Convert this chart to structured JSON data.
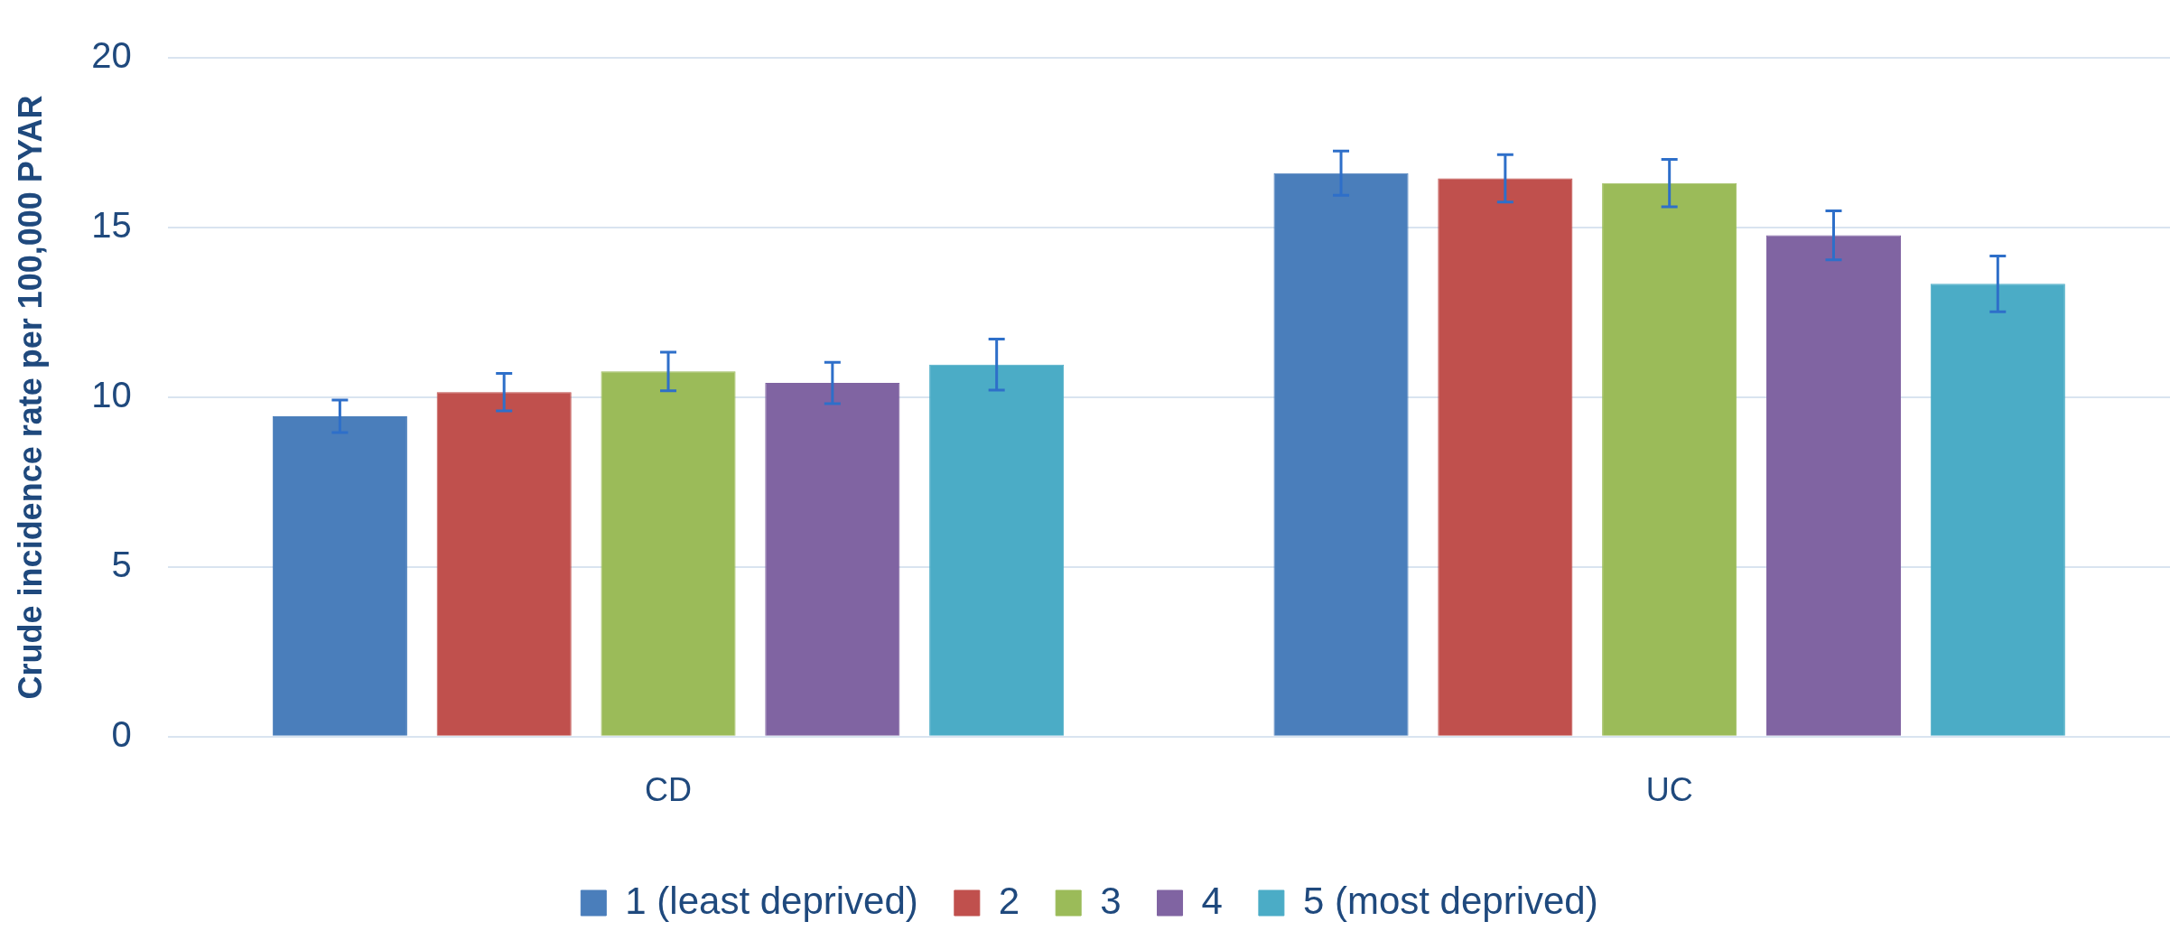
{
  "chart_data": {
    "type": "bar",
    "ylabel": "Crude incidence rate per 100,000 PYAR",
    "categories": [
      "CD",
      "UC"
    ],
    "series": [
      {
        "name": "1 (least deprived)",
        "color": "#4a7ebb",
        "values": [
          9.44,
          16.6
        ],
        "errors": [
          0.48,
          0.65
        ]
      },
      {
        "name": "2",
        "color": "#c0504d",
        "values": [
          10.15,
          16.45
        ],
        "errors": [
          0.55,
          0.7
        ]
      },
      {
        "name": "3",
        "color": "#9bbb59",
        "values": [
          10.76,
          16.31
        ],
        "errors": [
          0.57,
          0.7
        ]
      },
      {
        "name": "4",
        "color": "#8064a2",
        "values": [
          10.42,
          14.77
        ],
        "errors": [
          0.61,
          0.72
        ]
      },
      {
        "name": "5 (most deprived)",
        "color": "#4bacc6",
        "values": [
          10.96,
          13.34
        ],
        "errors": [
          0.75,
          0.82
        ]
      }
    ],
    "ylim": [
      0,
      20
    ],
    "yticks": [
      0,
      5,
      10,
      15,
      20
    ],
    "grid": "y",
    "legend": "bottom"
  }
}
